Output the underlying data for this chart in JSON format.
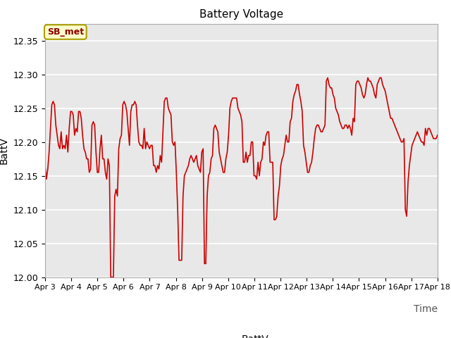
{
  "title": "Battery Voltage",
  "xlabel": "Time",
  "ylabel": "BattV",
  "ylim": [
    12.0,
    12.375
  ],
  "yticks": [
    12.0,
    12.05,
    12.1,
    12.15,
    12.2,
    12.25,
    12.3,
    12.35
  ],
  "line_color": "#cc0000",
  "line_width": 1.2,
  "bg_color": "#e8e8e8",
  "fig_bg": "#ffffff",
  "legend_label": "BattV",
  "station_label": "SB_met",
  "x_tick_labels": [
    "Apr 3",
    "Apr 4",
    "Apr 5",
    "Apr 6",
    "Apr 7",
    "Apr 8",
    "Apr 9",
    "Apr 10",
    "Apr 11",
    "Apr 12",
    "Apr 13",
    "Apr 14",
    "Apr 15",
    "Apr 16",
    "Apr 17",
    "Apr 18"
  ],
  "data": [
    12.165,
    12.145,
    12.16,
    12.185,
    12.22,
    12.255,
    12.26,
    12.255,
    12.225,
    12.21,
    12.195,
    12.19,
    12.215,
    12.19,
    12.195,
    12.19,
    12.21,
    12.185,
    12.22,
    12.245,
    12.245,
    12.24,
    12.21,
    12.22,
    12.215,
    12.245,
    12.245,
    12.235,
    12.21,
    12.19,
    12.185,
    12.175,
    12.175,
    12.155,
    12.16,
    12.225,
    12.23,
    12.225,
    12.185,
    12.155,
    12.155,
    12.19,
    12.21,
    12.175,
    12.175,
    12.155,
    12.145,
    12.175,
    12.165,
    12.0,
    12.0,
    12.0,
    12.12,
    12.13,
    12.12,
    12.19,
    12.205,
    12.21,
    12.255,
    12.26,
    12.255,
    12.245,
    12.22,
    12.195,
    12.245,
    12.255,
    12.255,
    12.26,
    12.255,
    12.225,
    12.2,
    12.195,
    12.195,
    12.19,
    12.22,
    12.19,
    12.2,
    12.195,
    12.19,
    12.195,
    12.195,
    12.165,
    12.165,
    12.155,
    12.165,
    12.16,
    12.18,
    12.17,
    12.215,
    12.26,
    12.265,
    12.265,
    12.25,
    12.245,
    12.24,
    12.2,
    12.195,
    12.2,
    12.155,
    12.1,
    12.025,
    12.025,
    12.025,
    12.12,
    12.15,
    12.155,
    12.16,
    12.165,
    12.175,
    12.18,
    12.175,
    12.17,
    12.175,
    12.18,
    12.165,
    12.16,
    12.155,
    12.185,
    12.19,
    12.02,
    12.02,
    12.12,
    12.15,
    12.155,
    12.175,
    12.18,
    12.22,
    12.225,
    12.22,
    12.215,
    12.185,
    12.175,
    12.165,
    12.155,
    12.155,
    12.175,
    12.185,
    12.21,
    12.25,
    12.26,
    12.265,
    12.265,
    12.265,
    12.265,
    12.25,
    12.245,
    12.24,
    12.23,
    12.17,
    12.17,
    12.185,
    12.17,
    12.18,
    12.18,
    12.2,
    12.2,
    12.15,
    12.15,
    12.145,
    12.17,
    12.15,
    12.17,
    12.175,
    12.2,
    12.195,
    12.21,
    12.215,
    12.215,
    12.17,
    12.17,
    12.17,
    12.085,
    12.085,
    12.09,
    12.12,
    12.135,
    12.165,
    12.175,
    12.18,
    12.195,
    12.21,
    12.2,
    12.2,
    12.23,
    12.235,
    12.26,
    12.27,
    12.275,
    12.285,
    12.285,
    12.27,
    12.26,
    12.245,
    12.195,
    12.185,
    12.17,
    12.155,
    12.155,
    12.165,
    12.17,
    12.185,
    12.205,
    12.22,
    12.225,
    12.225,
    12.22,
    12.215,
    12.215,
    12.22,
    12.225,
    12.29,
    12.295,
    12.285,
    12.28,
    12.28,
    12.27,
    12.265,
    12.25,
    12.245,
    12.24,
    12.23,
    12.225,
    12.22,
    12.22,
    12.225,
    12.225,
    12.22,
    12.225,
    12.22,
    12.21,
    12.235,
    12.23,
    12.285,
    12.29,
    12.29,
    12.285,
    12.28,
    12.27,
    12.265,
    12.27,
    12.285,
    12.295,
    12.29,
    12.29,
    12.285,
    12.28,
    12.27,
    12.265,
    12.285,
    12.29,
    12.295,
    12.295,
    12.285,
    12.28,
    12.275,
    12.265,
    12.255,
    12.245,
    12.235,
    12.235,
    12.23,
    12.225,
    12.22,
    12.215,
    12.21,
    12.205,
    12.2,
    12.2,
    12.205,
    12.1,
    12.09,
    12.14,
    12.165,
    12.18,
    12.195,
    12.2,
    12.205,
    12.21,
    12.215,
    12.21,
    12.205,
    12.2,
    12.2,
    12.195,
    12.22,
    12.21,
    12.22,
    12.22,
    12.215,
    12.21,
    12.205,
    12.205,
    12.205,
    12.21
  ]
}
